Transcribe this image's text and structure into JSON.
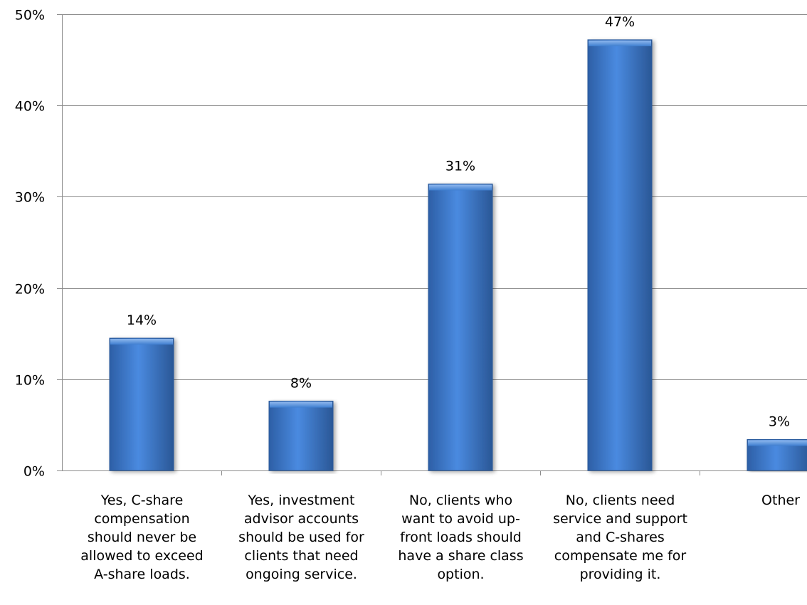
{
  "chart_data": {
    "type": "bar",
    "categories": [
      [
        "Yes, C-share",
        "compensation",
        "should never be",
        "allowed to exceed",
        "A-share loads."
      ],
      [
        "Yes, investment",
        "advisor accounts",
        "should be used for",
        "clients that need",
        "ongoing service."
      ],
      [
        "No, clients who",
        "want to avoid up-",
        "front loads should",
        "have a share class",
        "option."
      ],
      [
        "No, clients need",
        "service and support",
        "and C-shares",
        "compensate me for",
        "providing it."
      ],
      [
        "Other"
      ]
    ],
    "values": [
      14.5,
      7.6,
      31.4,
      47.2,
      3.4
    ],
    "data_labels": [
      "14%",
      "8%",
      "31%",
      "47%",
      "3%"
    ],
    "ylim": [
      0,
      50
    ],
    "y_ticks": [
      0,
      10,
      20,
      30,
      40,
      50
    ],
    "y_tick_labels": [
      "0%",
      "10%",
      "20%",
      "30%",
      "40%",
      "50%"
    ],
    "title": "",
    "xlabel": "",
    "ylabel": "",
    "grid": true,
    "legend": "none",
    "bar_color": "#3f7fd0"
  }
}
